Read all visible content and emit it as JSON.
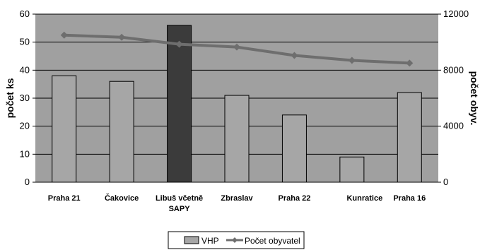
{
  "chart_data": {
    "type": "bar",
    "categories": [
      "Praha 21",
      "Čakovice",
      "Libuš včetně SAPY",
      "Zbraslav",
      "Praha 22",
      "Kunratice",
      "Praha 16"
    ],
    "category_lines": [
      [
        "Praha 21"
      ],
      [
        "Čakovice"
      ],
      [
        "Libuš včetně",
        "SAPY"
      ],
      [
        "Zbraslav"
      ],
      [
        "Praha 22"
      ],
      [
        "Kunratice"
      ],
      [
        "Praha 16"
      ]
    ],
    "series": [
      {
        "name": "VHP",
        "type": "bar",
        "axis": "left",
        "values": [
          38,
          36,
          56,
          31,
          24,
          9,
          32
        ],
        "color": "#a6a6a6",
        "highlight_index": 2,
        "highlight_color": "#3b3b3b"
      },
      {
        "name": "Počet obyvatel",
        "type": "line",
        "axis": "right",
        "values": [
          10500,
          10350,
          9850,
          9650,
          9050,
          8700,
          8500
        ],
        "color": "#6e6e6e"
      }
    ],
    "ylabel": "počet ks",
    "y2label": "počet obyv.",
    "ylim": [
      0,
      60
    ],
    "yticks": [
      0,
      10,
      20,
      30,
      40,
      50,
      60
    ],
    "y2lim": [
      0,
      12000
    ],
    "y2ticks": [
      0,
      4000,
      8000,
      12000
    ],
    "grid": true,
    "plot_background": "#a0a0a0",
    "legend_position": "bottom"
  }
}
